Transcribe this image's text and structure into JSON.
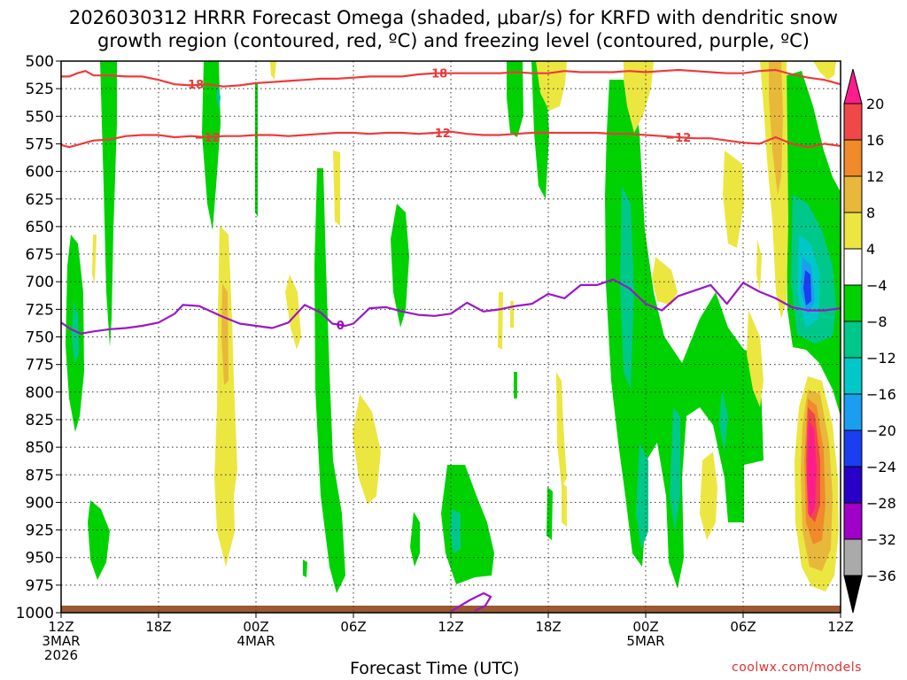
{
  "chart_data": {
    "type": "time-height contour",
    "title_line1": "2026030312 HRRR Forecast Omega (shaded, μbar/s) for KRFD with dendritic snow",
    "title_line2": "growth region (contoured, red, ºC) and freezing level (contoured, purple, ºC)",
    "xlabel": "Forecast Time (UTC)",
    "credit": "coolwx.com/models",
    "x_range_hours": [
      0,
      48
    ],
    "x_ticks": [
      {
        "hour": 0,
        "label": "12Z",
        "date": "3MAR",
        "year": "2026"
      },
      {
        "hour": 6,
        "label": "18Z",
        "date": "",
        "year": ""
      },
      {
        "hour": 12,
        "label": "00Z",
        "date": "4MAR",
        "year": ""
      },
      {
        "hour": 18,
        "label": "06Z",
        "date": "",
        "year": ""
      },
      {
        "hour": 24,
        "label": "12Z",
        "date": "",
        "year": ""
      },
      {
        "hour": 30,
        "label": "18Z",
        "date": "",
        "year": ""
      },
      {
        "hour": 36,
        "label": "00Z",
        "date": "5MAR",
        "year": ""
      },
      {
        "hour": 42,
        "label": "06Z",
        "date": "",
        "year": ""
      },
      {
        "hour": 48,
        "label": "12Z",
        "date": "",
        "year": ""
      }
    ],
    "y_range_mb": [
      500,
      1000
    ],
    "y_ticks": [
      "500",
      "525",
      "550",
      "575",
      "600",
      "625",
      "650",
      "675",
      "700",
      "725",
      "750",
      "775",
      "800",
      "825",
      "850",
      "875",
      "900",
      "925",
      "950",
      "975",
      "1000"
    ],
    "colorbar": {
      "labels": [
        "20",
        "16",
        "12",
        "8",
        "4",
        "−4",
        "−8",
        "−12",
        "−16",
        "−20",
        "−24",
        "−28",
        "−32",
        "−36"
      ],
      "colors": [
        "#ff1d8e",
        "#f04848",
        "#f08a2a",
        "#e8b83a",
        "#ece640",
        "#ffffff",
        "#00d100",
        "#00c88a",
        "#00c8c8",
        "#1a9ef0",
        "#1a3ef0",
        "#2800c8",
        "#a000c8",
        "#aaaaaa",
        "#000000"
      ]
    },
    "contours": {
      "dgz_label_minus18": "−18",
      "dgz_label_minus12": "−12",
      "freezing_label": "0",
      "minus18_mb": [
        [
          0,
          514
        ],
        [
          0.5,
          514
        ],
        [
          1,
          511
        ],
        [
          1.5,
          509
        ],
        [
          2,
          513
        ],
        [
          3,
          513
        ],
        [
          4,
          514
        ],
        [
          5,
          514
        ],
        [
          6,
          517
        ],
        [
          7,
          521
        ],
        [
          8,
          522
        ],
        [
          9,
          521
        ],
        [
          10,
          523
        ],
        [
          11,
          522
        ],
        [
          12,
          520
        ],
        [
          13,
          519
        ],
        [
          14,
          518
        ],
        [
          15,
          517
        ],
        [
          16,
          516
        ],
        [
          17,
          516
        ],
        [
          18,
          515
        ],
        [
          19,
          514
        ],
        [
          20,
          514
        ],
        [
          21,
          514
        ],
        [
          22,
          512
        ],
        [
          23,
          511
        ],
        [
          24,
          511
        ],
        [
          25,
          511
        ],
        [
          26,
          511
        ],
        [
          27,
          511
        ],
        [
          28,
          510
        ],
        [
          29,
          511
        ],
        [
          30,
          511
        ],
        [
          31,
          509
        ],
        [
          32,
          510
        ],
        [
          33,
          510
        ],
        [
          34,
          510
        ],
        [
          35,
          509
        ],
        [
          36,
          510
        ],
        [
          37,
          509
        ],
        [
          38,
          508
        ],
        [
          39,
          509
        ],
        [
          40,
          510
        ],
        [
          41,
          511
        ],
        [
          42,
          511
        ],
        [
          43,
          509
        ],
        [
          44,
          508
        ],
        [
          45,
          512
        ],
        [
          46,
          515
        ],
        [
          47,
          517
        ],
        [
          48,
          521
        ]
      ],
      "minus12_mb": [
        [
          0,
          576
        ],
        [
          0.5,
          578
        ],
        [
          1,
          576
        ],
        [
          2,
          572
        ],
        [
          3,
          571
        ],
        [
          4,
          568
        ],
        [
          5,
          567
        ],
        [
          6,
          567
        ],
        [
          7,
          569
        ],
        [
          8,
          568
        ],
        [
          9,
          569
        ],
        [
          10,
          568
        ],
        [
          11,
          568
        ],
        [
          12,
          567
        ],
        [
          13,
          567
        ],
        [
          14,
          568
        ],
        [
          15,
          567
        ],
        [
          16,
          566
        ],
        [
          17,
          565
        ],
        [
          18,
          565
        ],
        [
          19,
          566
        ],
        [
          20,
          565
        ],
        [
          21,
          565
        ],
        [
          22,
          566
        ],
        [
          23,
          565
        ],
        [
          24,
          564
        ],
        [
          25,
          566
        ],
        [
          26,
          567
        ],
        [
          27,
          567
        ],
        [
          28,
          566
        ],
        [
          29,
          565
        ],
        [
          30,
          565
        ],
        [
          31,
          565
        ],
        [
          32,
          565
        ],
        [
          33,
          565
        ],
        [
          34,
          566
        ],
        [
          35,
          566
        ],
        [
          36,
          567
        ],
        [
          37,
          568
        ],
        [
          38,
          569
        ],
        [
          39,
          570
        ],
        [
          40,
          570
        ],
        [
          41,
          572
        ],
        [
          42,
          574
        ],
        [
          43,
          575
        ],
        [
          44,
          569
        ],
        [
          45,
          575
        ],
        [
          46,
          578
        ],
        [
          47,
          575
        ],
        [
          48,
          577
        ]
      ],
      "freezing_mb": [
        [
          0,
          737
        ],
        [
          0.6,
          743
        ],
        [
          1.2,
          747
        ],
        [
          2,
          745
        ],
        [
          3,
          743
        ],
        [
          4,
          742
        ],
        [
          5,
          740
        ],
        [
          6,
          737
        ],
        [
          7,
          729
        ],
        [
          7.5,
          721
        ],
        [
          8.5,
          722
        ],
        [
          10,
          732
        ],
        [
          11,
          738
        ],
        [
          12,
          740
        ],
        [
          13,
          742
        ],
        [
          14,
          737
        ],
        [
          15,
          721
        ],
        [
          16,
          728
        ],
        [
          16.7,
          738
        ],
        [
          17.5,
          740
        ],
        [
          18,
          738
        ],
        [
          19,
          724
        ],
        [
          20,
          723
        ],
        [
          21,
          727
        ],
        [
          22,
          730
        ],
        [
          23,
          731
        ],
        [
          24,
          729
        ],
        [
          25,
          719
        ],
        [
          26,
          727
        ],
        [
          27,
          725
        ],
        [
          28,
          722
        ],
        [
          29,
          720
        ],
        [
          30,
          711
        ],
        [
          31,
          715
        ],
        [
          32,
          703
        ],
        [
          33,
          703
        ],
        [
          34,
          698
        ],
        [
          35,
          706
        ],
        [
          36,
          720
        ],
        [
          37,
          726
        ],
        [
          38,
          713
        ],
        [
          39,
          708
        ],
        [
          40,
          703
        ],
        [
          41,
          720
        ],
        [
          42,
          701
        ],
        [
          43,
          709
        ],
        [
          44,
          715
        ],
        [
          45,
          723
        ],
        [
          46,
          726
        ],
        [
          47,
          726
        ],
        [
          48,
          724
        ]
      ]
    },
    "surface_band_mb": [
      985,
      1000
    ]
  }
}
